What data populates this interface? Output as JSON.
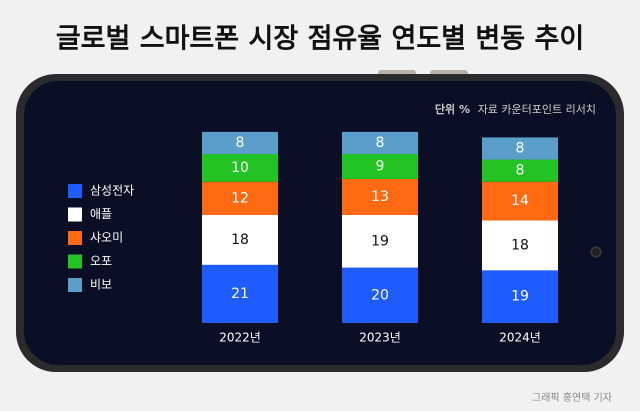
{
  "chart_data": {
    "type": "stacked-bar",
    "title": "글로벌 스마트폰 시장 점유율 연도별 변동 추이",
    "unit": "단위 %",
    "source": "자료 카운터포인트 리서치",
    "credit": "그래픽 홍연택 기자",
    "categories": [
      "2022년",
      "2023년",
      "2024년"
    ],
    "series": [
      {
        "name": "삼성전자",
        "color": "#1f5cff",
        "values": [
          21,
          20,
          19
        ]
      },
      {
        "name": "애플",
        "color": "#ffffff",
        "values": [
          18,
          19,
          18
        ]
      },
      {
        "name": "샤오미",
        "color": "#ff6a13",
        "values": [
          12,
          13,
          14
        ]
      },
      {
        "name": "오포",
        "color": "#22c322",
        "values": [
          10,
          9,
          8
        ]
      },
      {
        "name": "비보",
        "color": "#5b9ec9",
        "values": [
          8,
          8,
          8
        ]
      }
    ]
  }
}
